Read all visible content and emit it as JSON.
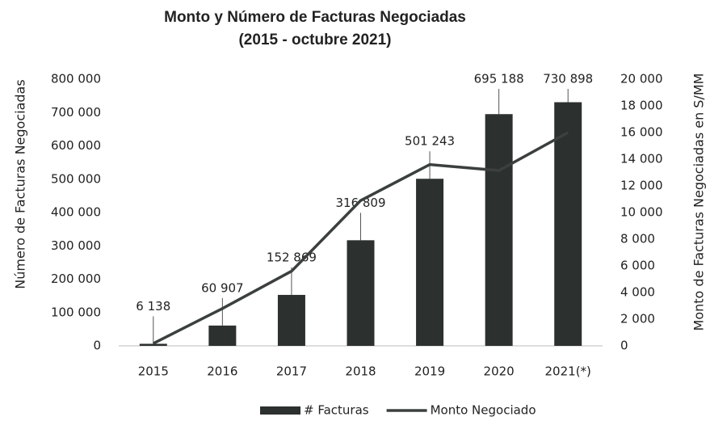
{
  "chart_data": {
    "type": "bar",
    "title": "Monto y Número de Facturas Negociadas",
    "subtitle": "(2015 - octubre 2021)",
    "y_label": "Número de Facturas Negociadas",
    "y2_label": "Monto de Facturas Negociadas en S/MM",
    "categories": [
      "2015",
      "2016",
      "2017",
      "2018",
      "2019",
      "2020",
      "2021(*)"
    ],
    "series": [
      {
        "name": "# Facturas",
        "type": "bar",
        "color": "#2c302f",
        "values": [
          6138,
          60907,
          152869,
          316809,
          501243,
          695188,
          730898
        ],
        "value_labels": [
          "6 138",
          "60 907",
          "152 869",
          "316 809",
          "501 243",
          "695 188",
          "730 898"
        ]
      },
      {
        "name": "Monto Negociado",
        "type": "line",
        "axis": "y2",
        "color": "#3b403f",
        "values": [
          180,
          2800,
          5600,
          10900,
          13600,
          13150,
          16000
        ]
      }
    ],
    "ylim": [
      0,
      800000
    ],
    "yticks": [
      0,
      {
        "value": 100000,
        "label": "100 000"
      },
      {
        "value": 200000,
        "label": "200 000"
      },
      {
        "value": 300000,
        "label": "300 000"
      },
      {
        "value": 400000,
        "label": "400 000"
      },
      {
        "value": 500000,
        "label": "500 000"
      },
      {
        "value": 600000,
        "label": "600 000"
      },
      {
        "value": 700000,
        "label": "700 000"
      },
      {
        "value": 800000,
        "label": "800 000"
      }
    ],
    "y2lim": [
      0,
      20000
    ],
    "y2ticks": [
      0,
      {
        "value": 2000,
        "label": "2 000"
      },
      {
        "value": 4000,
        "label": "4 000"
      },
      {
        "value": 6000,
        "label": "6 000"
      },
      {
        "value": 8000,
        "label": "8 000"
      },
      {
        "value": 10000,
        "label": "10 000"
      },
      {
        "value": 12000,
        "label": "12 000"
      },
      {
        "value": 14000,
        "label": "14 000"
      },
      {
        "value": 16000,
        "label": "16 000"
      },
      {
        "value": 18000,
        "label": "18 000"
      },
      {
        "value": 20000,
        "label": "20 000"
      }
    ],
    "grid": false,
    "legend": "bottom"
  }
}
